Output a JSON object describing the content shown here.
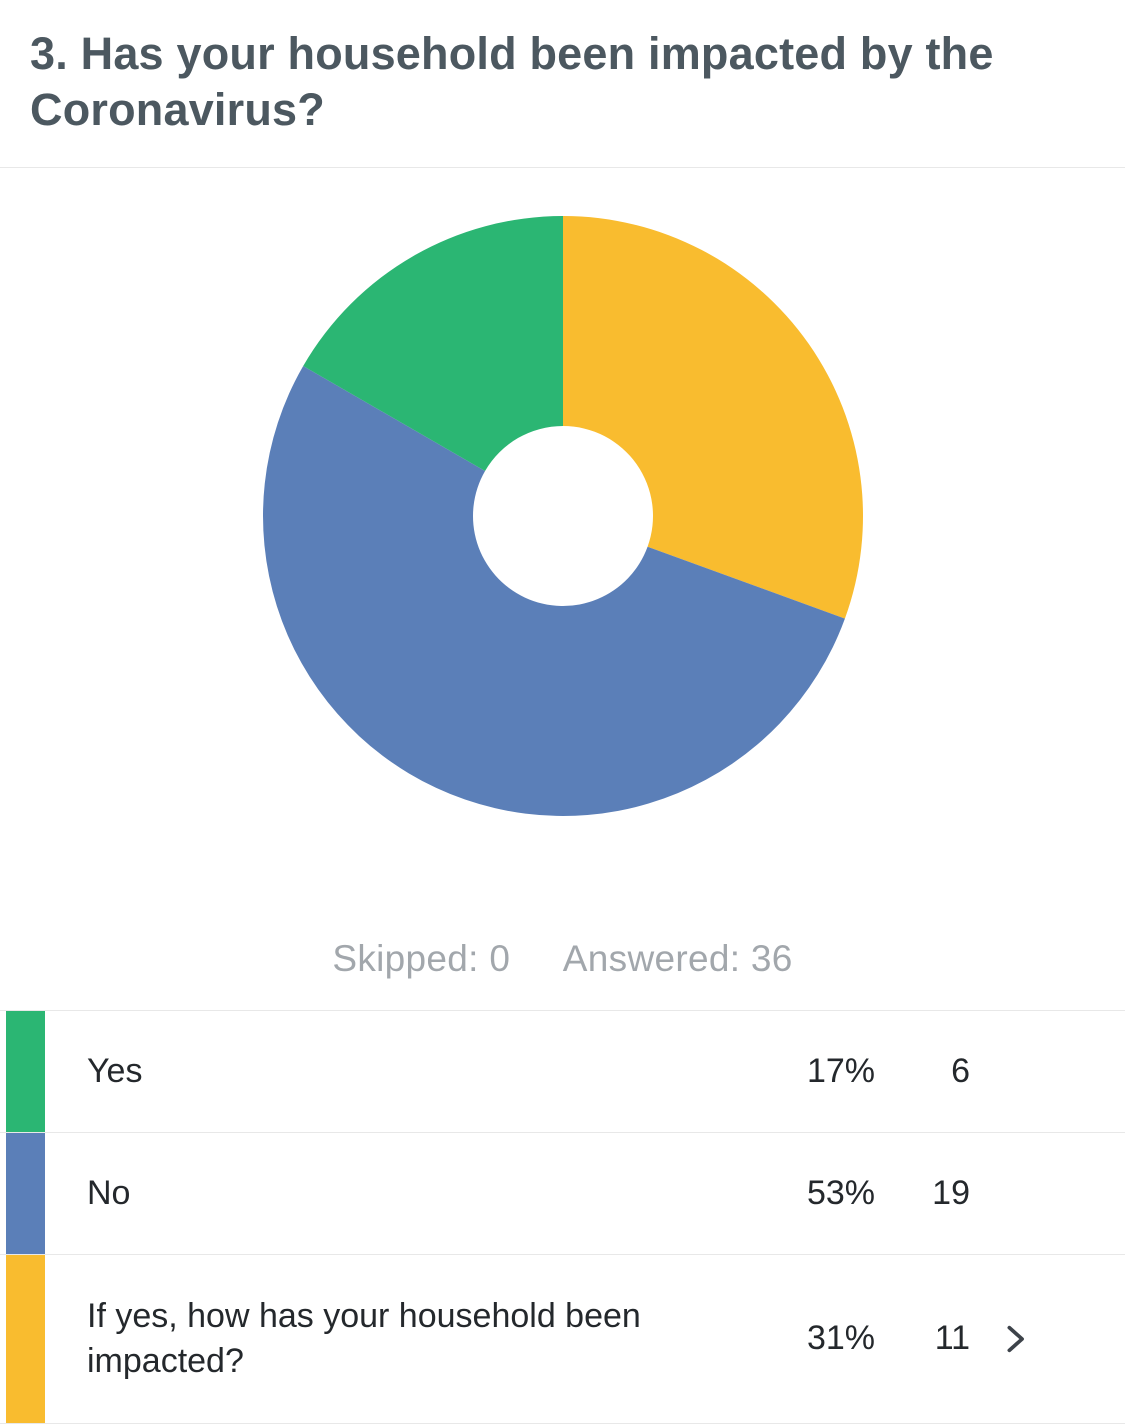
{
  "header": {
    "title": "3. Has your household been impacted by the Coronavirus?"
  },
  "stats": {
    "skipped": "Skipped: 0",
    "answered": "Answered: 36"
  },
  "chart_data": {
    "type": "pie",
    "donut": true,
    "inner_radius_ratio": 0.3,
    "start_angle_deg": 0,
    "clockwise": true,
    "total_answered": 36,
    "total_skipped": 0,
    "slices": [
      {
        "label": "If yes, how has your household been impacted?",
        "percent": 31,
        "count": 11,
        "color": "#f9bc2f"
      },
      {
        "label": "No",
        "percent": 53,
        "count": 19,
        "color": "#5b7fb8"
      },
      {
        "label": "Yes",
        "percent": 17,
        "count": 6,
        "color": "#2bb673"
      }
    ]
  },
  "table": {
    "rows": [
      {
        "label": "Yes",
        "percent": "17%",
        "count": "6",
        "color": "#2bb673"
      },
      {
        "label": "No",
        "percent": "53%",
        "count": "19",
        "color": "#5b7fb8"
      },
      {
        "label": "If yes, how has your household been impacted?",
        "percent": "31%",
        "count": "11",
        "color": "#f9bc2f"
      }
    ]
  },
  "icons": {
    "chevron_right": "chevron-right-icon",
    "chevron_color": "#3d434a"
  }
}
